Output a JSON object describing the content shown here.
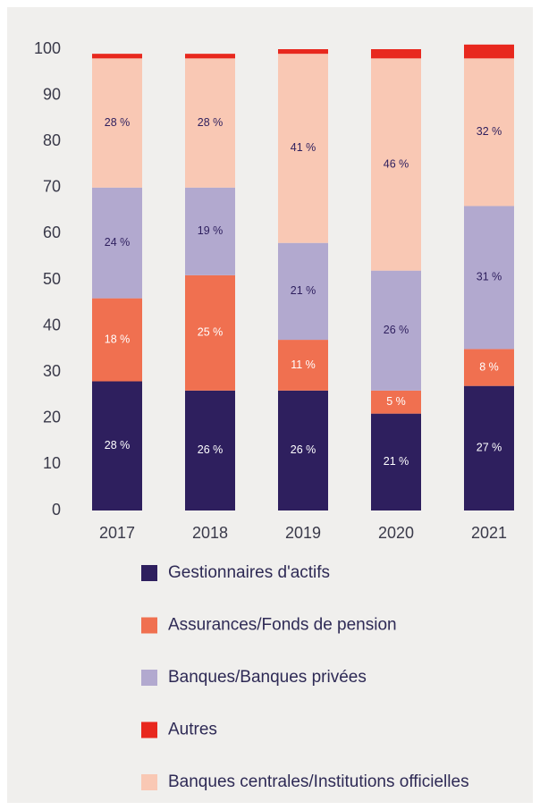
{
  "chart_data": {
    "type": "stacked_bar",
    "categories": [
      "2017",
      "2018",
      "2019",
      "2020",
      "2021"
    ],
    "series": [
      {
        "name": "Gestionnaires d'actifs",
        "color": "#2e1f5e",
        "values": [
          28,
          26,
          26,
          21,
          27
        ],
        "value_labels": [
          "28 %",
          "26 %",
          "26 %",
          "21 %",
          "27 %"
        ]
      },
      {
        "name": "Assurances/Fonds de pension",
        "color": "#f07050",
        "values": [
          18,
          25,
          11,
          5,
          8
        ],
        "value_labels": [
          "18 %",
          "25 %",
          "11 %",
          "5 %",
          "8 %"
        ]
      },
      {
        "name": "Banques/Banques privées",
        "color": "#b2a9cf",
        "values": [
          24,
          19,
          21,
          26,
          31
        ],
        "value_labels": [
          "24 %",
          "19 %",
          "21 %",
          "26 %",
          "31 %"
        ]
      },
      {
        "name": "Autres",
        "color": "#e8281e",
        "values": [
          1,
          1,
          1,
          2,
          3
        ]
      },
      {
        "name": "Banques centrales/Institutions officielles",
        "color": "#f9c8b4",
        "values": [
          28,
          28,
          41,
          46,
          32
        ],
        "value_labels": [
          "28 %",
          "28 %",
          "41 %",
          "46 %",
          "32 %"
        ]
      }
    ],
    "ylim": [
      0,
      100
    ],
    "yticks": [
      0,
      10,
      20,
      30,
      40,
      50,
      60,
      70,
      80,
      90,
      100
    ]
  }
}
